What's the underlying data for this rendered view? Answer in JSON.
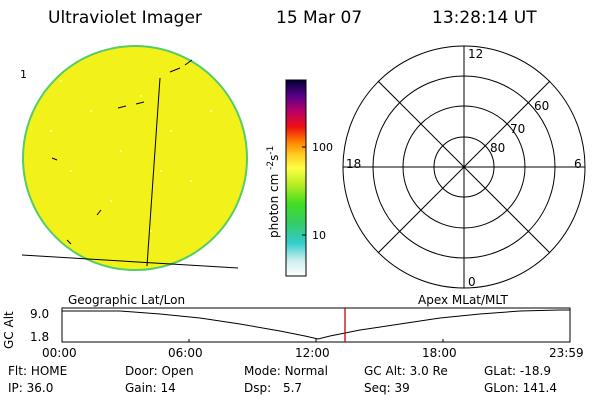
{
  "header": {
    "title": "Ultraviolet Imager",
    "date": "15 Mar 07",
    "time": "13:28:14 UT"
  },
  "colorbar": {
    "label": "photon cm",
    "exp1": "-2",
    "mid": "s",
    "exp2": "-1",
    "tick_labels": [
      "100",
      "10"
    ],
    "scale": "log"
  },
  "polar_plot": {
    "mlt_labels": {
      "top": "12",
      "left": "18",
      "right": "6",
      "bottom": "0"
    },
    "lat_labels": [
      "60",
      "70",
      "80"
    ]
  },
  "altitude_strip": {
    "left_label": "Geographic Lat/Lon",
    "right_label": "Apex MLat/MLT",
    "axis_label": "GC Alt",
    "y_top": "9.0",
    "y_bottom": "1.8",
    "time_ticks": [
      "00:00",
      "06:00",
      "12:00",
      "18:00",
      "23:59"
    ],
    "current_marker_time": "13:28:14"
  },
  "status": {
    "row1": [
      {
        "label": "Flt:",
        "value": "HOME"
      },
      {
        "label": "Door:",
        "value": "Open"
      },
      {
        "label": "Mode:",
        "value": "Normal"
      },
      {
        "label": "GC Alt:",
        "value": "3.0 Re"
      },
      {
        "label": "GLat:",
        "value": "-18.9"
      }
    ],
    "row2": [
      {
        "label": "IP:",
        "value": "36.0"
      },
      {
        "label": "Gain:",
        "value": "14"
      },
      {
        "label": "Dsp:",
        "value": "5.7"
      },
      {
        "label": "Seq:",
        "value": "39"
      },
      {
        "label": "GLon:",
        "value": "141.4"
      }
    ]
  },
  "colors": {
    "disk_fill": "#f2f21a",
    "disk_edge": "#55cc66",
    "marker": "#cc0000"
  }
}
